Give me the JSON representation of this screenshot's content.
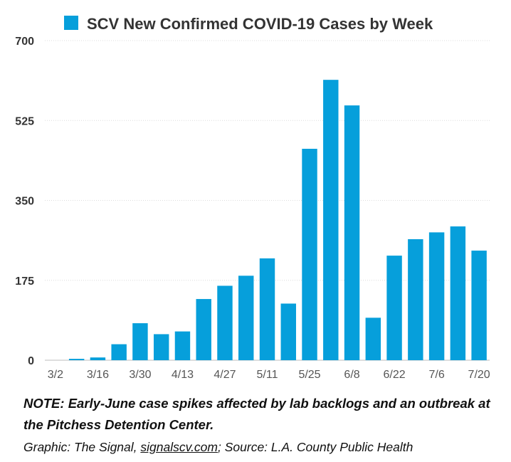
{
  "chart_data": {
    "type": "bar",
    "title": "SCV New Confirmed COVID-19 Cases by Week",
    "legend": {
      "placement": "top",
      "entries": [
        "SCV New Confirmed COVID-19 Cases by Week"
      ]
    },
    "xlabel": "",
    "ylabel": "",
    "ylim": [
      0,
      700
    ],
    "y_ticks": [
      "0",
      "175",
      "350",
      "525",
      "700"
    ],
    "grid": true,
    "series_color": "#069fdb",
    "categories": [
      "3/2",
      "3/9",
      "3/16",
      "3/23",
      "3/30",
      "4/6",
      "4/13",
      "4/20",
      "4/27",
      "5/4",
      "5/11",
      "5/18",
      "5/25",
      "6/1",
      "6/8",
      "6/15",
      "6/22",
      "6/29",
      "7/6",
      "7/13",
      "7/20"
    ],
    "x_tick_labels": [
      "3/2",
      "3/16",
      "3/30",
      "4/13",
      "4/27",
      "5/11",
      "5/25",
      "6/8",
      "6/22",
      "7/6",
      "7/20"
    ],
    "values": [
      0,
      3,
      6,
      35,
      81,
      57,
      63,
      134,
      163,
      185,
      223,
      124,
      463,
      614,
      558,
      93,
      229,
      265,
      280,
      293,
      240
    ]
  },
  "footer": {
    "note": "NOTE: Early-June case spikes affected by lab backlogs and an outbreak at the Pitchess Detention Center.",
    "credit_prefix": "Graphic: The Signal, ",
    "credit_link": "signalscv.com",
    "credit_suffix": "; Source: L.A. County Public Health"
  }
}
